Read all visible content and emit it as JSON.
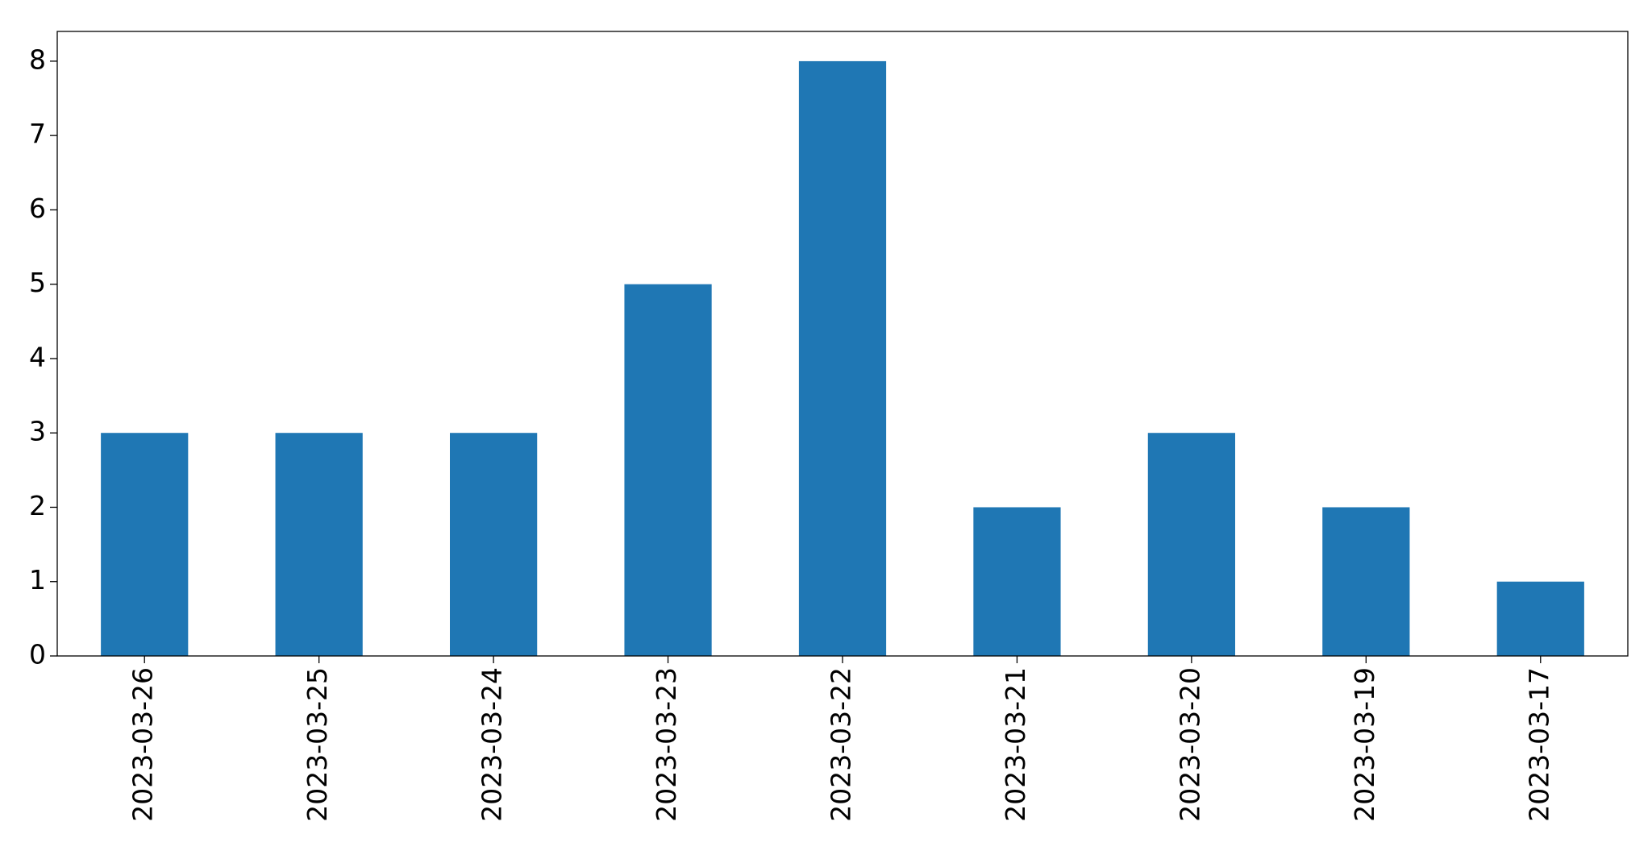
{
  "chart_data": {
    "type": "bar",
    "categories": [
      "2023-03-26",
      "2023-03-25",
      "2023-03-24",
      "2023-03-23",
      "2023-03-22",
      "2023-03-21",
      "2023-03-20",
      "2023-03-19",
      "2023-03-17"
    ],
    "values": [
      3,
      3,
      3,
      5,
      8,
      2,
      3,
      2,
      1
    ],
    "color": "#1f77b4",
    "ylim": [
      0,
      8.4
    ],
    "yticks": [
      0,
      1,
      2,
      3,
      4,
      5,
      6,
      7,
      8
    ],
    "grid": false
  }
}
